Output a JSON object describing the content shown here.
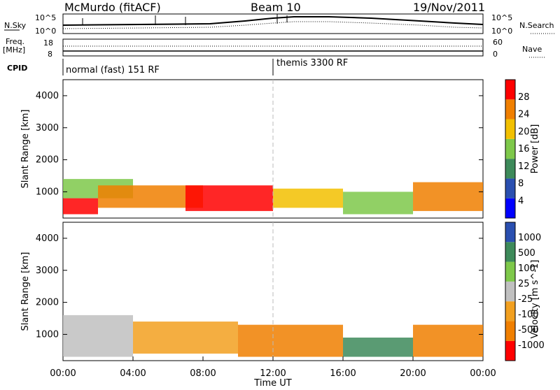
{
  "header": {
    "station": "McMurdo (fitACF)",
    "beam": "Beam 10",
    "date": "19/Nov/2011"
  },
  "summary_panels": {
    "nsky_label": "N.Sky",
    "nsky_ticks": [
      "10^5",
      "10^0"
    ],
    "nsearch_label": "N.Search",
    "nsearch_ticks": [
      "10^5",
      "10^0"
    ],
    "freq_label_line1": "Freq.",
    "freq_label_line2": "[MHz]",
    "freq_ticks": [
      "18",
      "8"
    ],
    "nave_label": "Nave",
    "nave_ticks": [
      "60",
      "0"
    ],
    "cpid_label": "CPID",
    "cpid_segments": [
      {
        "name": "normal (fast) 151 RF",
        "start_hour": 0
      },
      {
        "name": "themis 3300 RF",
        "start_hour": 12
      }
    ]
  },
  "chart_data": [
    {
      "type": "heatmap",
      "title": "Power",
      "ylabel": "Slant Range [km]",
      "xlabel": "Time UT",
      "ylim": [
        180,
        4500
      ],
      "xlim_hours": [
        0,
        24
      ],
      "yticks": [
        "4000",
        "3000",
        "2000",
        "1000"
      ],
      "colorbar_label": "Power [dB]",
      "colorbar_ticks": [
        "28",
        "24",
        "20",
        "16",
        "12",
        "8",
        "4"
      ],
      "colors": [
        "#0000ff",
        "#2a4fb0",
        "#3d8a5a",
        "#7ec84a",
        "#f2c000",
        "#f07f00",
        "#ff0000"
      ],
      "bands": [
        {
          "x": [
            0,
            2
          ],
          "y": [
            300,
            800
          ],
          "level": 6
        },
        {
          "x": [
            0,
            4
          ],
          "y": [
            800,
            1400
          ],
          "level": 3
        },
        {
          "x": [
            2,
            8
          ],
          "y": [
            500,
            1200
          ],
          "level": 5
        },
        {
          "x": [
            7,
            12
          ],
          "y": [
            400,
            1200
          ],
          "level": 6
        },
        {
          "x": [
            12,
            16
          ],
          "y": [
            500,
            1100
          ],
          "level": 4
        },
        {
          "x": [
            16,
            20
          ],
          "y": [
            300,
            1000
          ],
          "level": 3
        },
        {
          "x": [
            20,
            24
          ],
          "y": [
            400,
            1300
          ],
          "level": 5
        }
      ]
    },
    {
      "type": "heatmap",
      "title": "Velocity",
      "ylabel": "Slant Range [km]",
      "xlabel": "Time UT",
      "ylim": [
        180,
        4500
      ],
      "xlim_hours": [
        0,
        24
      ],
      "yticks": [
        "4000",
        "3000",
        "2000",
        "1000"
      ],
      "xticks": [
        "00:00",
        "04:00",
        "08:00",
        "12:00",
        "16:00",
        "20:00",
        "00:00"
      ],
      "colorbar_label": "Velocity [m s^-1]",
      "colorbar_ticks": [
        "1000",
        "500",
        "100",
        "25",
        "-25",
        "-100",
        "-500",
        "-1000"
      ],
      "colors": [
        "#ff0000",
        "#f07f00",
        "#f2a020",
        "#c0c0c0",
        "#7ec84a",
        "#3d8a5a",
        "#2a4fb0"
      ],
      "bands": [
        {
          "x": [
            0,
            4
          ],
          "y": [
            300,
            1600
          ],
          "level": 3
        },
        {
          "x": [
            4,
            10
          ],
          "y": [
            400,
            1400
          ],
          "level": 2
        },
        {
          "x": [
            10,
            16
          ],
          "y": [
            300,
            1300
          ],
          "level": 1
        },
        {
          "x": [
            16,
            20
          ],
          "y": [
            300,
            900
          ],
          "level": 5
        },
        {
          "x": [
            20,
            24
          ],
          "y": [
            300,
            1300
          ],
          "level": 1
        }
      ]
    }
  ],
  "colors": {
    "axis": "#000000",
    "background": "#ffffff",
    "marker_12ut": "#bbbbbb"
  }
}
